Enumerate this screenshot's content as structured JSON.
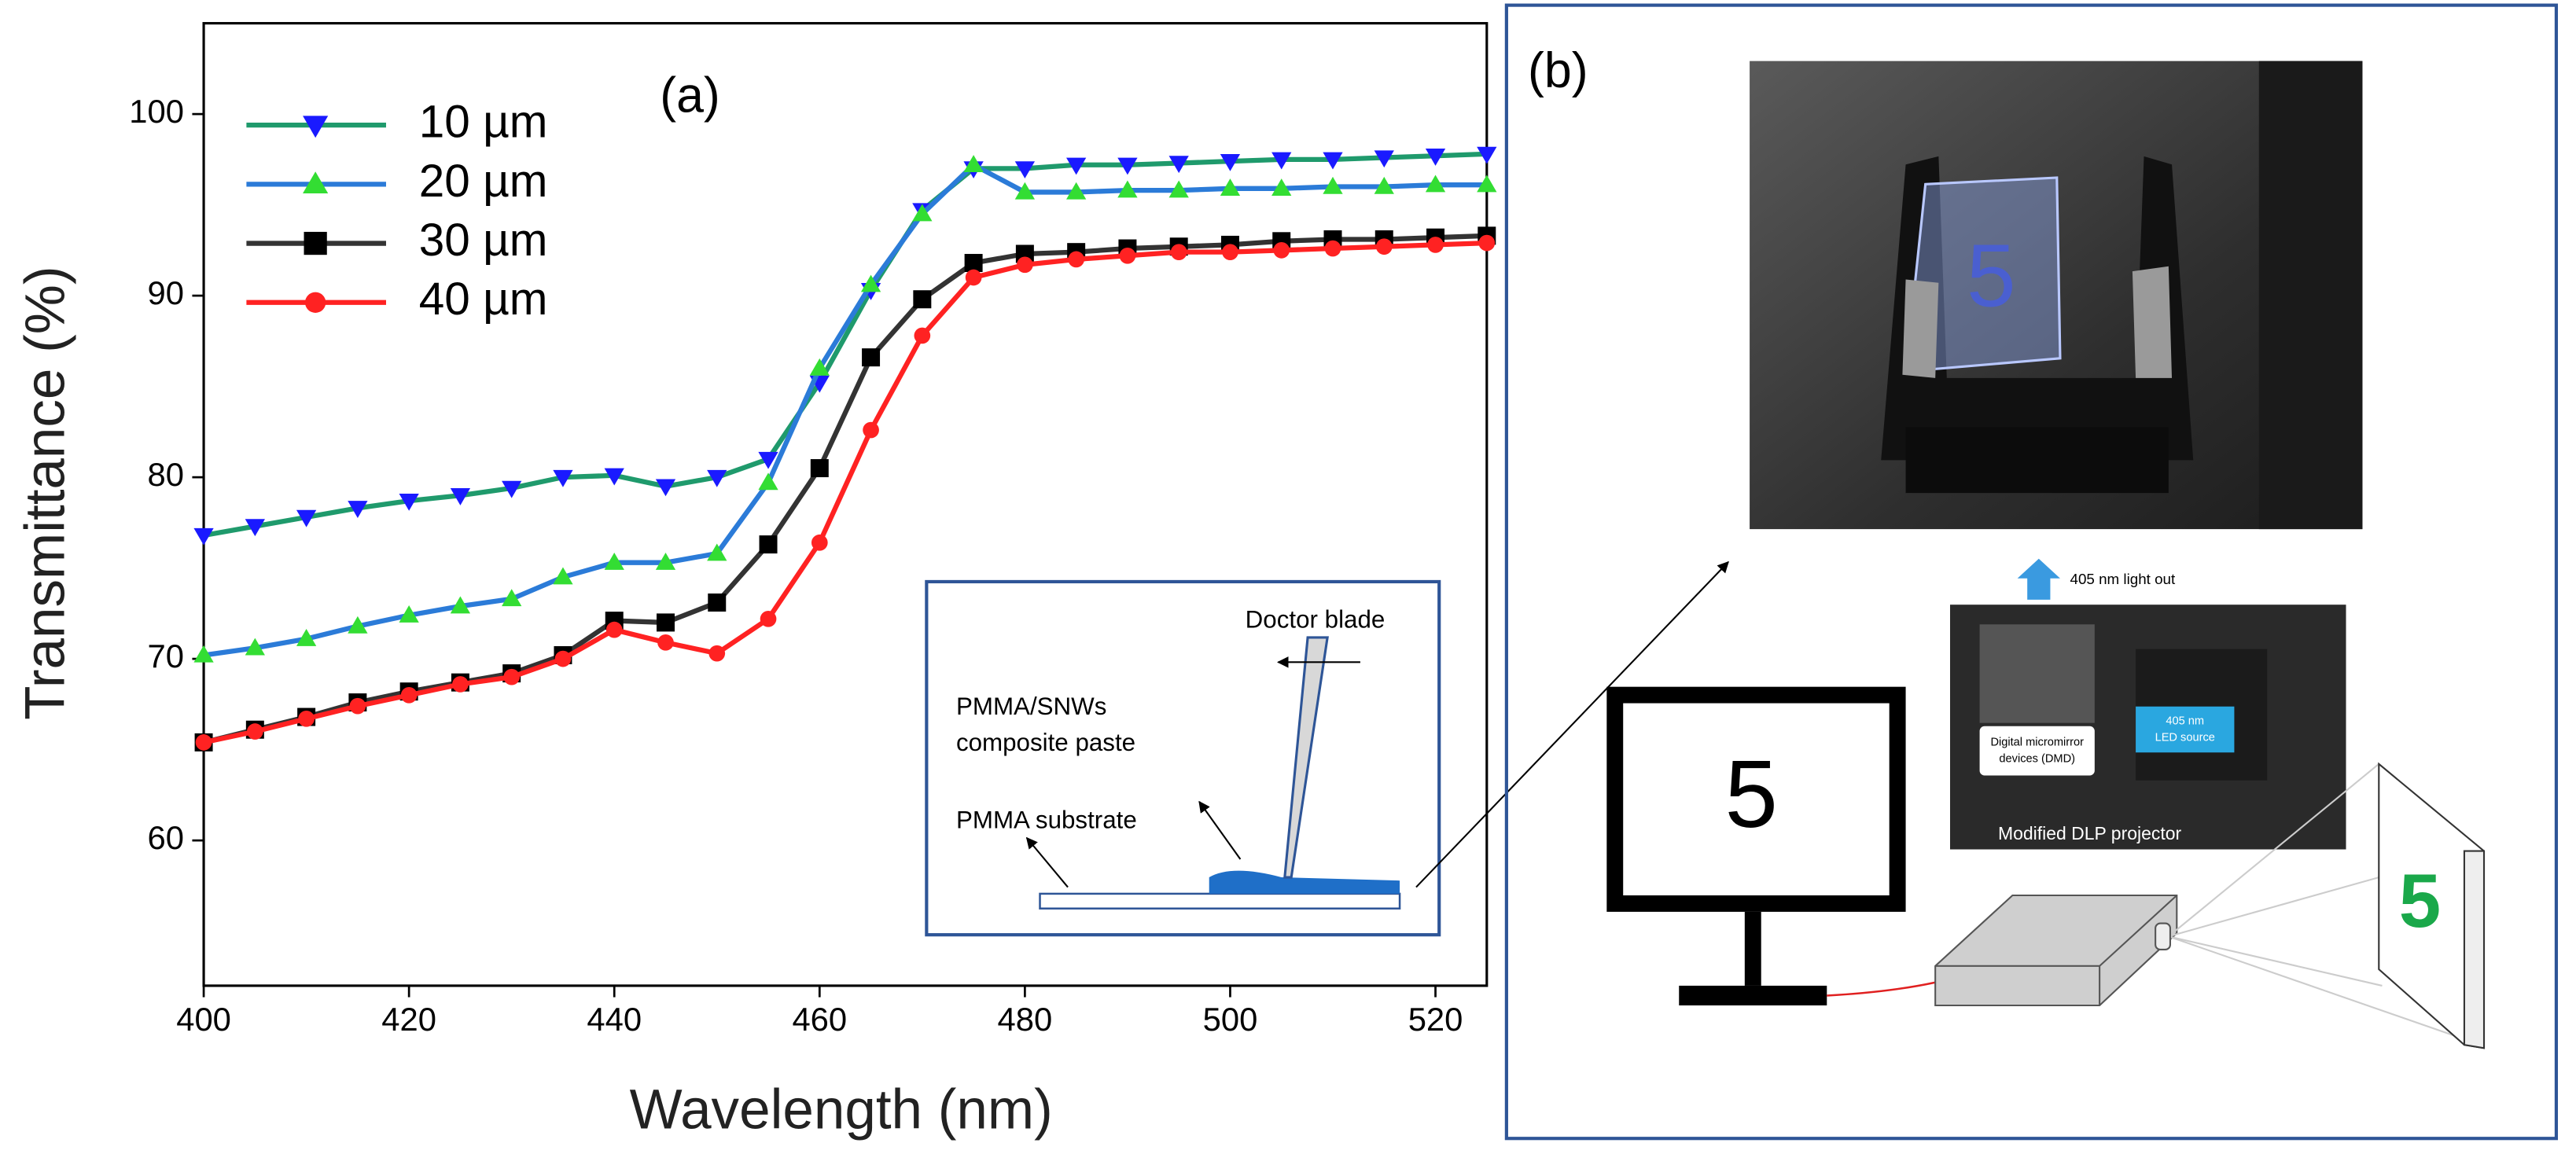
{
  "chart_data": {
    "type": "line",
    "x_label": "Wavelength (nm)",
    "y_label": "Transmittance (%)",
    "x": [
      400,
      405,
      410,
      415,
      420,
      425,
      430,
      435,
      440,
      445,
      450,
      455,
      460,
      465,
      470,
      475,
      480,
      485,
      490,
      495,
      500,
      505,
      510,
      515,
      520,
      525
    ],
    "series": [
      {
        "name": "10 µm",
        "color": "#1f9a6c",
        "marker": "v",
        "marker_color": "#1a1aff",
        "values": [
          76.8,
          77.3,
          77.8,
          78.3,
          78.7,
          79.0,
          79.4,
          80.0,
          80.1,
          79.5,
          80.0,
          81.0,
          85.2,
          90.3,
          94.7,
          97.0,
          97.0,
          97.2,
          97.2,
          97.3,
          97.4,
          97.5,
          97.5,
          97.6,
          97.7,
          97.8
        ]
      },
      {
        "name": "20 µm",
        "color": "#2b7bd8",
        "marker": "^",
        "marker_color": "#33dd33",
        "values": [
          70.2,
          70.6,
          71.1,
          71.8,
          72.4,
          72.9,
          73.3,
          74.5,
          75.3,
          75.3,
          75.8,
          79.7,
          86.0,
          90.6,
          94.5,
          97.2,
          95.7,
          95.7,
          95.8,
          95.8,
          95.9,
          95.9,
          96.0,
          96.0,
          96.1,
          96.1
        ]
      },
      {
        "name": "30 µm",
        "color": "#333333",
        "marker": "s",
        "marker_color": "#000000",
        "values": [
          65.4,
          66.1,
          66.8,
          67.6,
          68.2,
          68.7,
          69.2,
          70.2,
          72.1,
          72.0,
          73.1,
          76.3,
          80.5,
          86.6,
          89.8,
          91.8,
          92.3,
          92.4,
          92.6,
          92.7,
          92.8,
          93.0,
          93.1,
          93.1,
          93.2,
          93.3
        ]
      },
      {
        "name": "40 µm",
        "color": "#ff2222",
        "marker": "o",
        "marker_color": "#ff2222",
        "values": [
          65.4,
          66.0,
          66.7,
          67.4,
          68.0,
          68.6,
          69.0,
          70.0,
          71.6,
          70.9,
          70.3,
          72.2,
          76.4,
          82.6,
          87.8,
          91.0,
          91.7,
          92.0,
          92.2,
          92.4,
          92.4,
          92.5,
          92.6,
          92.7,
          92.8,
          92.9
        ]
      }
    ],
    "xlim": [
      400,
      525
    ],
    "xticks": [
      400,
      420,
      440,
      460,
      480,
      500,
      520
    ],
    "ylim": [
      52,
      105
    ],
    "yticks": [
      60,
      70,
      80,
      90,
      100
    ],
    "grid": false,
    "legend": "upper left"
  },
  "panel_a": {
    "label": "(a)",
    "inset": {
      "doctor_blade": "Doctor blade",
      "paste": [
        "PMMA/SNWs",
        "composite paste"
      ],
      "substrate": "PMMA substrate"
    }
  },
  "panel_b": {
    "label": "(b)",
    "photo_digit": "5",
    "light_out": "405 nm light out",
    "dmd": [
      "Digital micromirror",
      "devices (DMD)"
    ],
    "led": [
      "405 nm",
      "LED source"
    ],
    "projector": "Modified DLP projector",
    "monitor_digit": "5",
    "screen_digit": "5"
  }
}
